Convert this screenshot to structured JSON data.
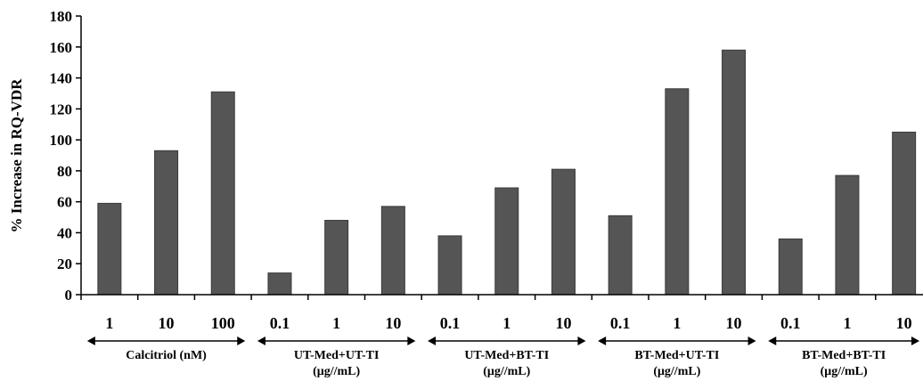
{
  "chart_data": {
    "type": "bar",
    "title": "",
    "xlabel": "",
    "ylabel": "% Increase in RQ-VDR",
    "ylim": [
      0,
      180
    ],
    "yticks": [
      0,
      20,
      40,
      60,
      80,
      100,
      120,
      140,
      160,
      180
    ],
    "grid": false,
    "legend": "none",
    "bar_color": "#555555",
    "categories": [
      "1",
      "10",
      "100",
      "0.1",
      "1",
      "10",
      "0.1",
      "1",
      "10",
      "0.1",
      "1",
      "10",
      "0.1",
      "1",
      "10"
    ],
    "values": [
      59,
      93,
      131,
      14,
      48,
      57,
      38,
      69,
      81,
      51,
      133,
      158,
      36,
      77,
      105
    ],
    "groups": [
      {
        "line1": "Calcitriol (nM)",
        "line2": "",
        "start": 0,
        "end": 2
      },
      {
        "line1": "UT-Med+UT-TI",
        "line2": "(μg//mL)",
        "start": 3,
        "end": 5
      },
      {
        "line1": "UT-Med+BT-TI",
        "line2": "(μg//mL)",
        "start": 6,
        "end": 8
      },
      {
        "line1": "BT-Med+UT-TI",
        "line2": "(μg//mL)",
        "start": 9,
        "end": 11
      },
      {
        "line1": "BT-Med+BT-TI",
        "line2": "(μg//mL)",
        "start": 12,
        "end": 14
      }
    ]
  }
}
